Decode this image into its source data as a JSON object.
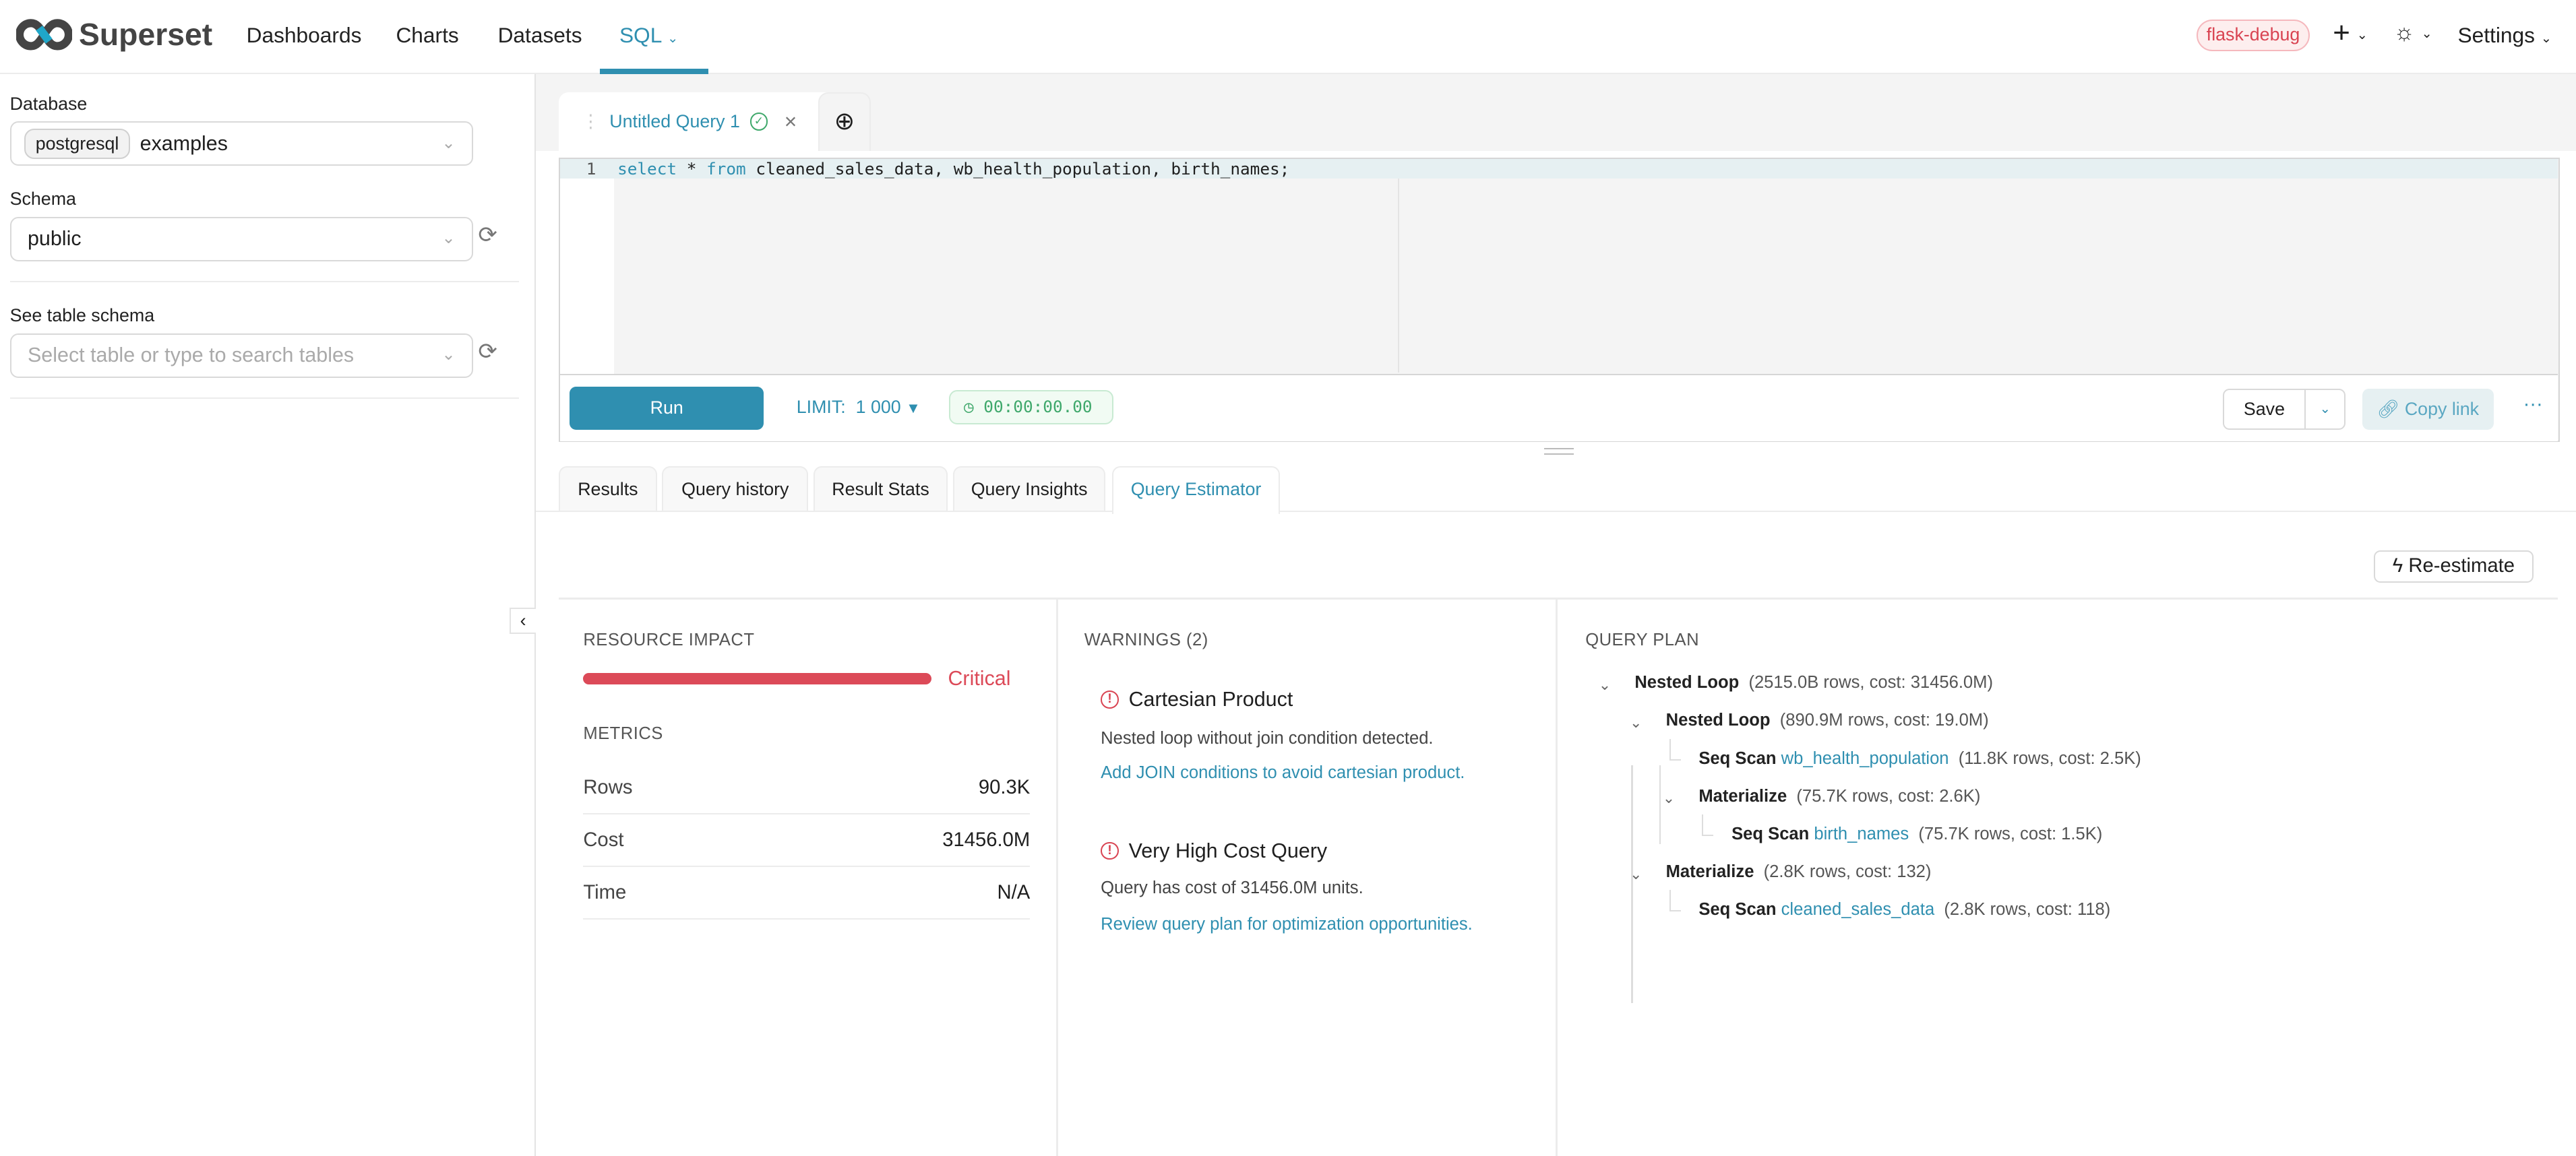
{
  "header": {
    "brand": "Superset",
    "nav": [
      "Dashboards",
      "Charts",
      "Datasets",
      "SQL"
    ],
    "active_nav": "SQL",
    "env_badge": "flask-debug",
    "settings": "Settings"
  },
  "sidebar": {
    "database_label": "Database",
    "database_engine": "postgresql",
    "database_value": "examples",
    "schema_label": "Schema",
    "schema_value": "public",
    "table_label": "See table schema",
    "table_placeholder": "Select table or type to search tables"
  },
  "editor": {
    "tab_title": "Untitled Query 1",
    "line_number": "1",
    "sql_kw1": "select",
    "sql_mid": " * ",
    "sql_kw2": "from",
    "sql_rest": " cleaned_sales_data, wb_health_population, birth_names;",
    "run": "Run",
    "limit": "LIMIT:",
    "limit_value": "1 000",
    "timer": "00:00:00.00",
    "save": "Save",
    "copy_link": "Copy link"
  },
  "result_tabs": [
    "Results",
    "Query history",
    "Result Stats",
    "Query Insights",
    "Query Estimator"
  ],
  "estimator": {
    "reestimate": "Re-estimate",
    "resource_title": "RESOURCE IMPACT",
    "impact_level": "Critical",
    "impact_fraction": 1.0,
    "impact_color": "#dc4a58",
    "metrics_title": "METRICS",
    "metrics": [
      {
        "label": "Rows",
        "value": "90.3K"
      },
      {
        "label": "Cost",
        "value": "31456.0M"
      },
      {
        "label": "Time",
        "value": "N/A"
      }
    ],
    "warnings_title": "WARNINGS (2)",
    "warnings": [
      {
        "title": "Cartesian Product",
        "desc": "Nested loop without join condition detected.",
        "hint": "Add JOIN conditions to avoid cartesian product."
      },
      {
        "title": "Very High Cost Query",
        "desc": "Query has cost of 31456.0M units.",
        "hint": "Review query plan for optimization opportunities."
      }
    ],
    "plan_title": "QUERY PLAN",
    "plan": [
      {
        "node": "Nested Loop",
        "table": "",
        "stats": "(2515.0B rows, cost: 31456.0M)"
      },
      {
        "node": "Nested Loop",
        "table": "",
        "stats": "(890.9M rows, cost: 19.0M)"
      },
      {
        "node": "Seq Scan",
        "table": "wb_health_population",
        "stats": "(11.8K rows, cost: 2.5K)"
      },
      {
        "node": "Materialize",
        "table": "",
        "stats": "(75.7K rows, cost: 2.6K)"
      },
      {
        "node": "Seq Scan",
        "table": "birth_names",
        "stats": "(75.7K rows, cost: 1.5K)"
      },
      {
        "node": "Materialize",
        "table": "",
        "stats": "(2.8K rows, cost: 132)"
      },
      {
        "node": "Seq Scan",
        "table": "cleaned_sales_data",
        "stats": "(2.8K rows, cost: 118)"
      }
    ]
  },
  "colors": {
    "accent": "#2f8fb0",
    "danger": "#dc4a58",
    "success": "#3fa86b"
  }
}
